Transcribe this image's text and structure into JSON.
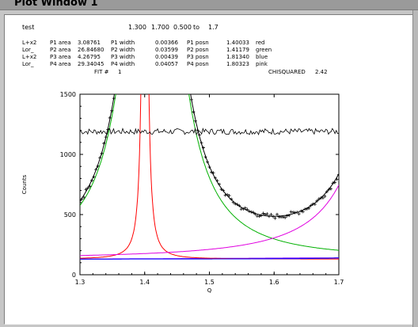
{
  "window": {
    "title": "Plot Window 1"
  },
  "header": {
    "name": "test",
    "x_from": "1.300",
    "x_to": "1.700",
    "step": "0.500",
    "to_label": "to",
    "to_value": "1.7"
  },
  "peaks": [
    {
      "type": "L+x2",
      "area_label": "P1 area",
      "area": "3.08761",
      "width_label": "P1 width",
      "width": "0.00366",
      "posn_label": "P1 posn",
      "posn": "1.40033",
      "color_name": "red",
      "color": "#ff0000"
    },
    {
      "type": "Lor_",
      "area_label": "P2 area",
      "area": "26.84680",
      "width_label": "P2 width",
      "width": "0.03599",
      "posn_label": "P2 posn",
      "posn": "1.41179",
      "color_name": "green",
      "color": "#00b000"
    },
    {
      "type": "L+x2",
      "area_label": "P3 area",
      "area": "4.26795",
      "width_label": "P3 width",
      "width": "0.00439",
      "posn_label": "P3 posn",
      "posn": "1.81340",
      "color_name": "blue",
      "color": "#0000ff"
    },
    {
      "type": "Lor_",
      "area_label": "P4 area",
      "area": "29.34045",
      "width_label": "P4 width",
      "width": "0.04057",
      "posn_label": "P4 posn",
      "posn": "1.80323",
      "color_name": "pink",
      "color": "#e000e0"
    }
  ],
  "fit": {
    "fit_label": "FIT #",
    "fit_number": "1",
    "chisq_label": "CHISQUARED",
    "chisq_value": "2.42"
  },
  "chart_data": {
    "type": "line",
    "xlabel": "Q",
    "ylabel": "Counts",
    "xlim": [
      1.3,
      1.7
    ],
    "ylim": [
      0,
      1500
    ],
    "xticks": [
      "1.3",
      "1.4",
      "1.5",
      "1.6",
      "1.7"
    ],
    "yticks": [
      "0",
      "500",
      "1000",
      "1500"
    ],
    "baseline": 130,
    "residual_level": 1190,
    "peaks": [
      {
        "name": "P1",
        "area": 3.08761,
        "width": 0.00366,
        "posn": 1.40033,
        "color": "#ff0000"
      },
      {
        "name": "P2",
        "area": 26.8468,
        "width": 0.03599,
        "posn": 1.41179,
        "color": "#00b000"
      },
      {
        "name": "P3",
        "area": 4.26795,
        "width": 0.00439,
        "posn": 1.8134,
        "color": "#0000ff"
      },
      {
        "name": "P4",
        "area": 29.34045,
        "width": 0.04057,
        "posn": 1.80323,
        "color": "#e000e0"
      }
    ],
    "fit_color": "#000000",
    "baseline_color": "#8000ff"
  }
}
